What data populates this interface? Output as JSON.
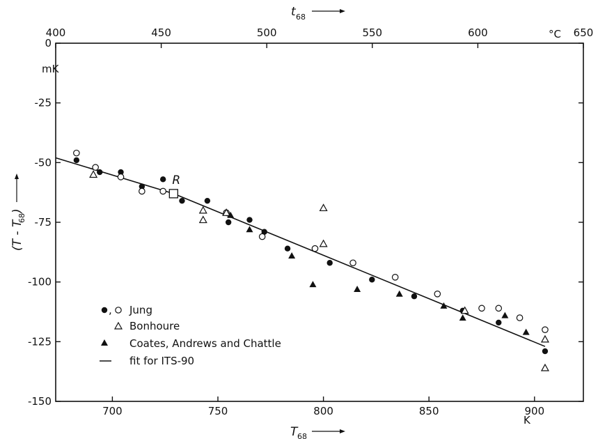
{
  "chart_data": {
    "type": "scatter",
    "title": "",
    "xlabel": "T",
    "xlabel_sub": "68",
    "x2label": "t",
    "x2label_sub": "68",
    "ylabel": "(T - T",
    "ylabel_sub": "68",
    "ylabel_close": ")",
    "y_unit": "mK",
    "x_unit": "K",
    "x2_unit": "°C",
    "xlim": [
      673.15,
      923.15
    ],
    "ylim": [
      -150,
      0
    ],
    "x_ticks": [
      700,
      750,
      800,
      850,
      900
    ],
    "x_tick_labels": [
      "700",
      "750",
      "800",
      "850",
      "900"
    ],
    "x2_ticks": [
      400,
      450,
      500,
      550,
      600,
      650
    ],
    "x2_tick_labels": [
      "400",
      "450",
      "500",
      "550",
      "600",
      "650"
    ],
    "y_ticks": [
      0,
      -25,
      -50,
      -75,
      -100,
      -125,
      -150
    ],
    "y_tick_labels": [
      "0",
      "-25",
      "-50",
      "-75",
      "-100",
      "-125",
      "-150"
    ],
    "annotation": {
      "label": "R",
      "x": 729,
      "y": -63
    },
    "legend_position": "bottom-left",
    "series": [
      {
        "name": "Jung",
        "legend_label": "●,○  Jung",
        "marker": "filled-circle",
        "points": [
          [
            683,
            -49
          ],
          [
            694,
            -54
          ],
          [
            704,
            -54
          ],
          [
            714,
            -60
          ],
          [
            724,
            -57
          ],
          [
            733,
            -66
          ],
          [
            745,
            -66
          ],
          [
            755,
            -75
          ],
          [
            765,
            -74
          ],
          [
            772,
            -79
          ],
          [
            783,
            -86
          ],
          [
            803,
            -92
          ],
          [
            823,
            -99
          ],
          [
            843,
            -106
          ],
          [
            866,
            -112
          ],
          [
            883,
            -117
          ],
          [
            905,
            -129
          ]
        ]
      },
      {
        "name": "Jung (open)",
        "legend_label": "",
        "marker": "open-circle",
        "points": [
          [
            683,
            -46
          ],
          [
            692,
            -52
          ],
          [
            704,
            -56
          ],
          [
            714,
            -62
          ],
          [
            724,
            -62
          ],
          [
            754,
            -71
          ],
          [
            771,
            -81
          ],
          [
            796,
            -86
          ],
          [
            814,
            -92
          ],
          [
            834,
            -98
          ],
          [
            854,
            -105
          ],
          [
            875,
            -111
          ],
          [
            883,
            -111
          ],
          [
            893,
            -115
          ],
          [
            905,
            -120
          ]
        ]
      },
      {
        "name": "Bonhoure",
        "legend_label": "Bonhoure",
        "marker": "open-triangle",
        "points": [
          [
            691,
            -55
          ],
          [
            743,
            -70
          ],
          [
            743,
            -74
          ],
          [
            754,
            -71
          ],
          [
            800,
            -84
          ],
          [
            800,
            -69
          ],
          [
            867,
            -112
          ],
          [
            905,
            -124
          ],
          [
            905,
            -136
          ]
        ]
      },
      {
        "name": "Coates, Andrews and Chattle",
        "legend_label": "Coates, Andrews and Chattle",
        "marker": "filled-triangle",
        "points": [
          [
            756,
            -72
          ],
          [
            765,
            -78
          ],
          [
            785,
            -89
          ],
          [
            795,
            -101
          ],
          [
            816,
            -103
          ],
          [
            836,
            -105
          ],
          [
            857,
            -110
          ],
          [
            866,
            -115
          ],
          [
            886,
            -114
          ],
          [
            896,
            -121
          ]
        ]
      }
    ],
    "fit": {
      "name": "fit for ITS-90",
      "legend_label": "fit for ITS-90",
      "points": [
        [
          673.15,
          -48
        ],
        [
          729,
          -63
        ],
        [
          905,
          -127
        ]
      ]
    },
    "reference_point": {
      "label": "R",
      "x": 729,
      "y": -63,
      "marker": "open-square"
    }
  }
}
